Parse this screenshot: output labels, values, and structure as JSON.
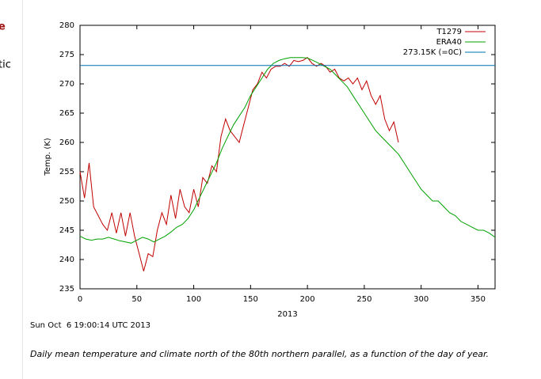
{
  "chart_data": {
    "type": "line",
    "ylabel": "Temp. (K)",
    "xlabel": "2013",
    "annotation": "Sun Oct  6 19:00:14 UTC 2013",
    "xlim": [
      0,
      365
    ],
    "xticks": [
      0,
      50,
      100,
      150,
      200,
      250,
      300,
      350
    ],
    "ylim": [
      235,
      280
    ],
    "yticks": [
      235,
      240,
      245,
      250,
      255,
      260,
      265,
      270,
      275,
      280
    ],
    "legend": "top-right",
    "series": [
      {
        "name": "T1279",
        "color": "#c00000",
        "x": [
          0,
          4,
          8,
          12,
          16,
          20,
          24,
          28,
          32,
          36,
          40,
          44,
          48,
          52,
          56,
          60,
          64,
          68,
          72,
          76,
          80,
          84,
          88,
          92,
          96,
          100,
          104,
          108,
          112,
          116,
          120,
          124,
          128,
          132,
          136,
          140,
          144,
          148,
          152,
          156,
          160,
          164,
          168,
          172,
          176,
          180,
          184,
          188,
          192,
          196,
          200,
          204,
          208,
          212,
          216,
          220,
          224,
          228,
          232,
          236,
          240,
          244,
          248,
          252,
          256,
          260,
          264,
          268,
          272,
          276,
          280
        ],
        "values": [
          255,
          250.5,
          256.5,
          249,
          247.5,
          246,
          245,
          248,
          244.5,
          248,
          244,
          248,
          244,
          241,
          238,
          241,
          240.5,
          245,
          248,
          246,
          251,
          247,
          252,
          249,
          248,
          252,
          249,
          254,
          253,
          256,
          255,
          261,
          264,
          262,
          261,
          260,
          263,
          266,
          269,
          270,
          272,
          271,
          272.5,
          273,
          273,
          273.5,
          273,
          274,
          273.8,
          274,
          274.5,
          273.5,
          273,
          273.5,
          273,
          272,
          272.5,
          271,
          270.5,
          271,
          270,
          271,
          269,
          270.5,
          268,
          266.5,
          268,
          264,
          262,
          263.5,
          260
        ]
      },
      {
        "name": "ERA40",
        "color": "#00a000",
        "x": [
          0,
          5,
          10,
          15,
          20,
          25,
          30,
          35,
          40,
          45,
          50,
          55,
          60,
          65,
          70,
          75,
          80,
          85,
          90,
          95,
          100,
          105,
          110,
          115,
          120,
          125,
          130,
          135,
          140,
          145,
          150,
          155,
          160,
          165,
          170,
          175,
          180,
          185,
          190,
          195,
          200,
          205,
          210,
          215,
          220,
          225,
          230,
          235,
          240,
          245,
          250,
          255,
          260,
          265,
          270,
          275,
          280,
          285,
          290,
          295,
          300,
          305,
          310,
          315,
          320,
          325,
          330,
          335,
          340,
          345,
          350,
          355,
          360,
          365
        ],
        "values": [
          244,
          243.5,
          243.3,
          243.5,
          243.5,
          243.8,
          243.5,
          243.2,
          243,
          242.8,
          243.3,
          243.8,
          243.5,
          243,
          243.5,
          244,
          244.7,
          245.5,
          246,
          247,
          248.5,
          250.5,
          252.5,
          254.5,
          256.5,
          259,
          261,
          263,
          264.5,
          266,
          268,
          269.5,
          271,
          272.5,
          273.5,
          274,
          274.3,
          274.5,
          274.5,
          274.5,
          274.4,
          274,
          273.5,
          273,
          272.5,
          271.5,
          270.5,
          269.5,
          268,
          266.5,
          265,
          263.5,
          262,
          261,
          260,
          259,
          258,
          256.5,
          255,
          253.5,
          252,
          251,
          250,
          250,
          249,
          248,
          247.5,
          246.5,
          246,
          245.5,
          245,
          245,
          244.5,
          243.8
        ]
      },
      {
        "name": "273.15K (=0C)",
        "color": "#0070b0",
        "x": [
          0,
          365
        ],
        "values": [
          273.15,
          273.15
        ]
      }
    ]
  },
  "sidebar": [
    "e",
    "tic"
  ],
  "caption": "Daily mean temperature and climate north of the 80th northern parallel, as a function of the day of year."
}
